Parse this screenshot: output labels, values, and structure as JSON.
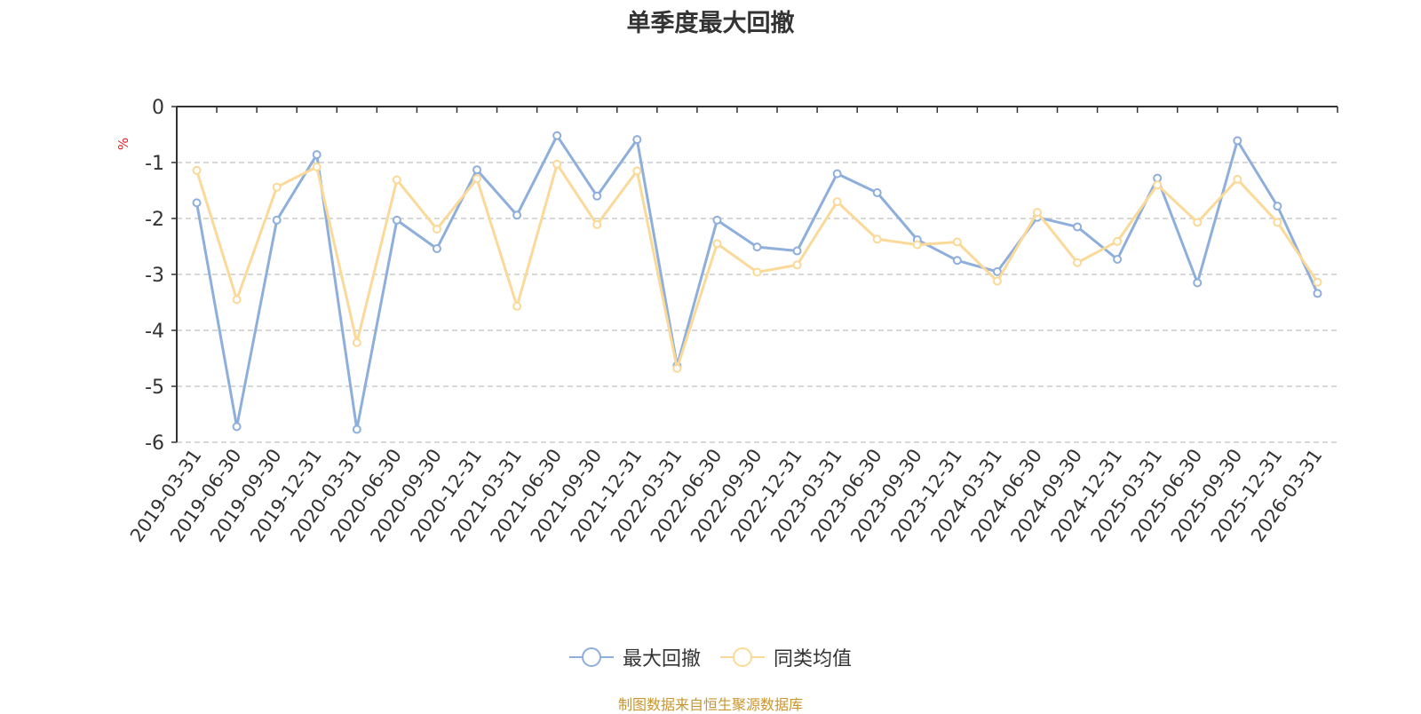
{
  "chart_data": {
    "type": "line",
    "title": "单季度最大回撤",
    "ylabel": "%",
    "ylim": [
      -6,
      0
    ],
    "yticks": [
      0,
      -1,
      -2,
      -3,
      -4,
      -5,
      -6
    ],
    "grid": true,
    "legend_position": "bottom",
    "categories": [
      "2019-03-31",
      "2019-06-30",
      "2019-09-30",
      "2019-12-31",
      "2020-03-31",
      "2020-06-30",
      "2020-09-30",
      "2020-12-31",
      "2021-03-31",
      "2021-06-30",
      "2021-09-30",
      "2021-12-31",
      "2022-03-31",
      "2022-06-30",
      "2022-09-30",
      "2022-12-31",
      "2023-03-31",
      "2023-06-30",
      "2023-09-30",
      "2023-12-31",
      "2024-03-31",
      "2024-06-30",
      "2024-09-30",
      "2024-12-31",
      "2025-03-31",
      "2025-06-30",
      "2025-09-30",
      "2025-12-31",
      "2026-03-31"
    ],
    "series": [
      {
        "name": "最大回撤",
        "color": "#8eaedb",
        "values": [
          -1.72,
          -5.72,
          -2.03,
          -0.86,
          -5.77,
          -2.03,
          -2.54,
          -1.13,
          -1.94,
          -0.52,
          -1.6,
          -0.59,
          -4.63,
          -2.03,
          -2.51,
          -2.58,
          -1.2,
          -1.54,
          -2.38,
          -2.75,
          -2.95,
          -1.98,
          -2.15,
          -2.73,
          -1.28,
          -3.15,
          -0.61,
          -1.78,
          -3.34
        ]
      },
      {
        "name": "同类均值",
        "color": "#fad999",
        "values": [
          -1.14,
          -3.45,
          -1.44,
          -1.08,
          -4.22,
          -1.31,
          -2.19,
          -1.29,
          -3.57,
          -1.03,
          -2.11,
          -1.15,
          -4.68,
          -2.45,
          -2.96,
          -2.83,
          -1.7,
          -2.37,
          -2.47,
          -2.42,
          -3.12,
          -1.89,
          -2.79,
          -2.41,
          -1.4,
          -2.07,
          -1.3,
          -2.07,
          -3.14
        ]
      }
    ]
  },
  "source_note": "制图数据来自恒生聚源数据库",
  "colors": {
    "axis": "#333333",
    "grid": "#cccccc",
    "unit": "#e02020",
    "source": "#c8962e"
  }
}
